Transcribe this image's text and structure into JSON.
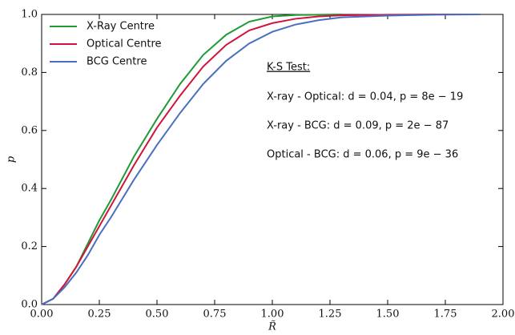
{
  "chart_data": {
    "type": "line",
    "x_label": "R̃",
    "y_label": "p",
    "x": [
      0,
      0.05,
      0.1,
      0.15,
      0.2,
      0.25,
      0.3,
      0.4,
      0.5,
      0.6,
      0.7,
      0.8,
      0.9,
      1.0,
      1.1,
      1.2,
      1.3,
      1.5,
      1.7,
      1.9
    ],
    "series": [
      {
        "name": "X-Ray Centre",
        "color": "#1f9a35",
        "values": [
          0,
          0.02,
          0.07,
          0.13,
          0.21,
          0.29,
          0.36,
          0.51,
          0.64,
          0.76,
          0.86,
          0.93,
          0.975,
          0.993,
          0.998,
          0.999,
          1.0,
          null,
          null,
          null
        ]
      },
      {
        "name": "Optical Centre",
        "color": "#d2143c",
        "values": [
          0,
          0.02,
          0.07,
          0.13,
          0.2,
          0.27,
          0.34,
          0.48,
          0.61,
          0.72,
          0.82,
          0.895,
          0.945,
          0.97,
          0.985,
          0.993,
          0.997,
          0.999,
          1.0,
          1.0
        ]
      },
      {
        "name": "BCG Centre",
        "color": "#4a6fc0",
        "values": [
          0,
          0.02,
          0.06,
          0.11,
          0.17,
          0.24,
          0.3,
          0.43,
          0.55,
          0.66,
          0.76,
          0.84,
          0.9,
          0.94,
          0.965,
          0.98,
          0.99,
          0.996,
          0.999,
          1.0
        ]
      }
    ],
    "xlim": [
      0,
      2
    ],
    "ylim": [
      0,
      1
    ],
    "xticks": [
      {
        "value": 0,
        "label": "0.00"
      },
      0.25,
      {
        "value": 0.5,
        "label": "0.50"
      },
      0.75,
      {
        "value": 1,
        "label": "1.00"
      },
      1.25,
      {
        "value": 1.5,
        "label": "1.50"
      },
      1.75,
      {
        "value": 2,
        "label": "2.00"
      }
    ],
    "yticks": [
      {
        "value": 0,
        "label": "0.0"
      },
      0.2,
      0.4,
      0.6,
      0.8,
      {
        "value": 1,
        "label": "1.0"
      }
    ],
    "legend": "upper left",
    "annotations": [
      "K-S Test:",
      "X-ray - Optical: d = 0.04, p = 8e − 19",
      "X-ray - BCG: d = 0.09, p = 2e − 87",
      "Optical - BCG: d = 0.06, p = 9e − 36"
    ]
  }
}
